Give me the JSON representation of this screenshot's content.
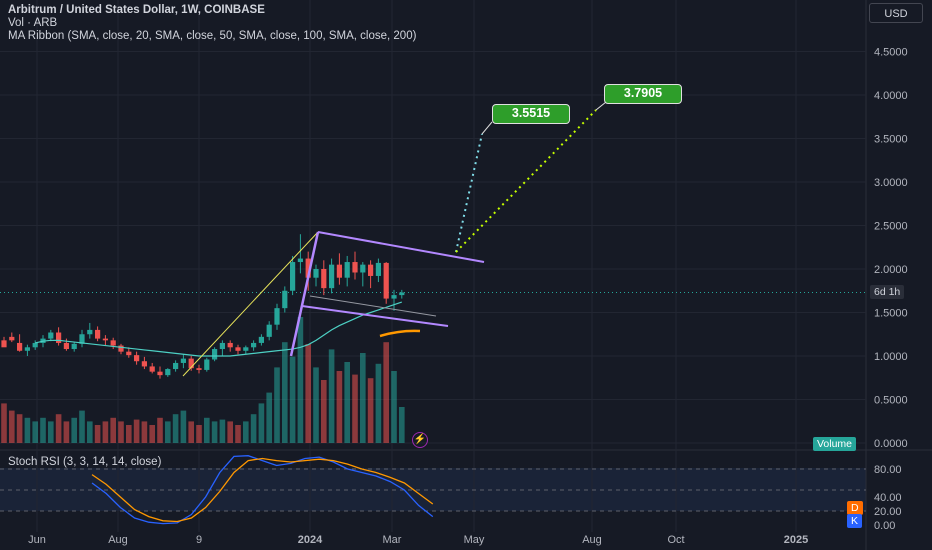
{
  "header": {
    "title": "Arbitrum / United States Dollar, 1W, COINBASE",
    "vol_label": "Vol · ARB",
    "ribbon_label": "MA Ribbon (SMA, close, 20, SMA, close, 50, SMA, close, 100, SMA, close, 200)"
  },
  "currency_button": "USD",
  "stoch_label": "Stoch RSI (3, 3, 14, 14, close)",
  "countdown": "6d 1h",
  "volume_tag": "Volume",
  "d_tag": "D",
  "k_tag": "K",
  "callouts": {
    "left": "3.5515",
    "right": "3.7905"
  },
  "price_axis": [
    "4.5000",
    "4.0000",
    "3.5000",
    "3.0000",
    "2.5000",
    "2.0000",
    "1.5000",
    "1.0000",
    "0.5000",
    "0.0000"
  ],
  "stoch_axis": [
    "80.00",
    "40.00",
    "20.00",
    "0.00"
  ],
  "time_axis": [
    "Jun",
    "Aug",
    "9",
    "2024",
    "Mar",
    "May",
    "Aug",
    "Oct",
    "2025"
  ],
  "colors": {
    "background": "#161a25",
    "up": "#26a69a",
    "down": "#ef5350",
    "pattern": "#b388ff",
    "target_line": "#c6ff00",
    "callout": "#2e9e2a",
    "ribbon": "#4dd0c4",
    "stoch_k": "#2962ff",
    "stoch_d": "#ff9800"
  },
  "icons": {
    "flash": "lightning-icon"
  }
}
